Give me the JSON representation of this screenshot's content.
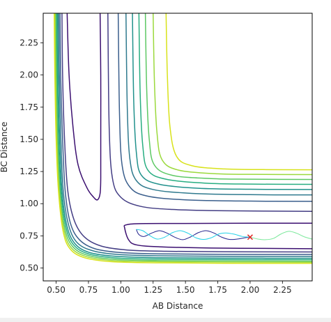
{
  "chart_data": {
    "type": "contour",
    "xlabel": "AB Distance",
    "ylabel": "BC Distance",
    "xlim": [
      0.4,
      2.48
    ],
    "ylim": [
      0.4,
      2.48
    ],
    "xticks": [
      "0.50",
      "0.75",
      "1.00",
      "1.25",
      "1.50",
      "1.75",
      "2.00",
      "2.25"
    ],
    "yticks": [
      "0.50",
      "0.75",
      "1.00",
      "1.25",
      "1.50",
      "1.75",
      "2.00",
      "2.25"
    ],
    "grid": false,
    "contour_colormap": [
      "#3b0f70",
      "#433d84",
      "#3a5e8c",
      "#2f7a8e",
      "#21918c",
      "#27ad81",
      "#5cc863",
      "#9bd93c",
      "#d8e219",
      "#fde725"
    ],
    "contours": [
      {
        "level": 1,
        "color": "#3b0f70",
        "points": [
          [
            0.84,
            2.48
          ],
          [
            0.845,
            2.0
          ],
          [
            0.845,
            1.5
          ],
          [
            0.845,
            1.2
          ],
          [
            0.84,
            1.08
          ],
          [
            0.82,
            1.03
          ],
          [
            0.79,
            1.05
          ],
          [
            0.74,
            1.12
          ],
          [
            0.67,
            1.3
          ],
          [
            0.63,
            1.6
          ],
          [
            0.6,
            2.0
          ],
          [
            0.585,
            2.48
          ]
        ]
      },
      {
        "level": 1,
        "color": "#3b0f70",
        "points": [
          [
            2.48,
            0.848
          ],
          [
            2.0,
            0.848
          ],
          [
            1.5,
            0.846
          ],
          [
            1.15,
            0.845
          ],
          [
            1.04,
            0.835
          ],
          [
            1.03,
            0.81
          ],
          [
            1.06,
            0.72
          ],
          [
            1.12,
            0.68
          ],
          [
            1.3,
            0.665
          ],
          [
            1.7,
            0.655
          ],
          [
            2.2,
            0.652
          ],
          [
            2.48,
            0.65
          ]
        ]
      },
      {
        "level": 2,
        "color": "#433d84",
        "points": [
          [
            0.9,
            2.48
          ],
          [
            0.91,
            1.6
          ],
          [
            0.935,
            1.2
          ],
          [
            1.0,
            1.05
          ],
          [
            1.15,
            0.98
          ],
          [
            1.4,
            0.955
          ],
          [
            1.8,
            0.945
          ],
          [
            2.48,
            0.94
          ]
        ]
      },
      {
        "level": 2,
        "color": "#433d84",
        "points": [
          [
            2.48,
            0.625
          ],
          [
            1.8,
            0.626
          ],
          [
            1.35,
            0.63
          ],
          [
            1.05,
            0.64
          ],
          [
            0.85,
            0.67
          ],
          [
            0.72,
            0.74
          ],
          [
            0.64,
            0.87
          ],
          [
            0.59,
            1.1
          ],
          [
            0.565,
            1.5
          ],
          [
            0.55,
            2.0
          ],
          [
            0.545,
            2.48
          ]
        ]
      },
      {
        "level": 3,
        "color": "#3a5e8c",
        "points": [
          [
            0.98,
            2.48
          ],
          [
            0.99,
            1.7
          ],
          [
            1.01,
            1.3
          ],
          [
            1.07,
            1.13
          ],
          [
            1.2,
            1.06
          ],
          [
            1.5,
            1.03
          ],
          [
            2.0,
            1.02
          ],
          [
            2.48,
            1.018
          ]
        ]
      },
      {
        "level": 3,
        "color": "#3a5e8c",
        "points": [
          [
            2.48,
            0.605
          ],
          [
            1.8,
            0.606
          ],
          [
            1.3,
            0.61
          ],
          [
            1.0,
            0.62
          ],
          [
            0.8,
            0.65
          ],
          [
            0.68,
            0.72
          ],
          [
            0.61,
            0.85
          ],
          [
            0.57,
            1.1
          ],
          [
            0.55,
            1.5
          ],
          [
            0.535,
            2.0
          ],
          [
            0.53,
            2.48
          ]
        ]
      },
      {
        "level": 4,
        "color": "#2f7a8e",
        "points": [
          [
            1.04,
            2.48
          ],
          [
            1.05,
            1.75
          ],
          [
            1.07,
            1.35
          ],
          [
            1.12,
            1.18
          ],
          [
            1.25,
            1.11
          ],
          [
            1.55,
            1.08
          ],
          [
            2.0,
            1.07
          ],
          [
            2.48,
            1.068
          ]
        ]
      },
      {
        "level": 4,
        "color": "#2f7a8e",
        "points": [
          [
            2.48,
            0.59
          ],
          [
            1.8,
            0.591
          ],
          [
            1.3,
            0.595
          ],
          [
            0.98,
            0.605
          ],
          [
            0.78,
            0.635
          ],
          [
            0.66,
            0.7
          ],
          [
            0.595,
            0.84
          ],
          [
            0.555,
            1.1
          ],
          [
            0.537,
            1.5
          ],
          [
            0.525,
            2.0
          ],
          [
            0.52,
            2.48
          ]
        ]
      },
      {
        "level": 5,
        "color": "#21918c",
        "points": [
          [
            1.09,
            2.48
          ],
          [
            1.1,
            1.8
          ],
          [
            1.12,
            1.4
          ],
          [
            1.16,
            1.22
          ],
          [
            1.3,
            1.15
          ],
          [
            1.6,
            1.12
          ],
          [
            2.0,
            1.112
          ],
          [
            2.48,
            1.11
          ]
        ]
      },
      {
        "level": 5,
        "color": "#21918c",
        "points": [
          [
            2.48,
            0.576
          ],
          [
            1.8,
            0.577
          ],
          [
            1.3,
            0.58
          ],
          [
            0.97,
            0.59
          ],
          [
            0.76,
            0.62
          ],
          [
            0.645,
            0.69
          ],
          [
            0.583,
            0.83
          ],
          [
            0.545,
            1.1
          ],
          [
            0.527,
            1.5
          ],
          [
            0.516,
            2.0
          ],
          [
            0.511,
            2.48
          ]
        ]
      },
      {
        "level": 6,
        "color": "#27ad81",
        "points": [
          [
            1.14,
            2.48
          ],
          [
            1.15,
            1.85
          ],
          [
            1.17,
            1.45
          ],
          [
            1.21,
            1.26
          ],
          [
            1.35,
            1.19
          ],
          [
            1.65,
            1.16
          ],
          [
            2.0,
            1.152
          ],
          [
            2.48,
            1.15
          ]
        ]
      },
      {
        "level": 6,
        "color": "#27ad81",
        "points": [
          [
            2.48,
            0.565
          ],
          [
            1.8,
            0.566
          ],
          [
            1.3,
            0.569
          ],
          [
            0.96,
            0.578
          ],
          [
            0.75,
            0.61
          ],
          [
            0.635,
            0.68
          ],
          [
            0.575,
            0.82
          ],
          [
            0.537,
            1.1
          ],
          [
            0.519,
            1.5
          ],
          [
            0.509,
            2.0
          ],
          [
            0.504,
            2.48
          ]
        ]
      },
      {
        "level": 7,
        "color": "#5cc863",
        "points": [
          [
            1.19,
            2.48
          ],
          [
            1.2,
            1.9
          ],
          [
            1.22,
            1.5
          ],
          [
            1.26,
            1.3
          ],
          [
            1.4,
            1.22
          ],
          [
            1.7,
            1.195
          ],
          [
            2.0,
            1.19
          ],
          [
            2.48,
            1.188
          ]
        ]
      },
      {
        "level": 7,
        "color": "#5cc863",
        "points": [
          [
            2.48,
            0.554
          ],
          [
            1.8,
            0.555
          ],
          [
            1.3,
            0.558
          ],
          [
            0.95,
            0.567
          ],
          [
            0.74,
            0.6
          ],
          [
            0.625,
            0.67
          ],
          [
            0.567,
            0.81
          ],
          [
            0.53,
            1.1
          ],
          [
            0.512,
            1.5
          ],
          [
            0.502,
            2.0
          ],
          [
            0.497,
            2.48
          ]
        ]
      },
      {
        "level": 8,
        "color": "#9bd93c",
        "points": [
          [
            1.25,
            2.48
          ],
          [
            1.26,
            1.95
          ],
          [
            1.28,
            1.55
          ],
          [
            1.32,
            1.34
          ],
          [
            1.45,
            1.26
          ],
          [
            1.75,
            1.232
          ],
          [
            2.0,
            1.228
          ],
          [
            2.48,
            1.226
          ]
        ]
      },
      {
        "level": 8,
        "color": "#9bd93c",
        "points": [
          [
            2.48,
            0.545
          ],
          [
            1.8,
            0.546
          ],
          [
            1.3,
            0.549
          ],
          [
            0.94,
            0.558
          ],
          [
            0.73,
            0.59
          ],
          [
            0.615,
            0.66
          ],
          [
            0.56,
            0.8
          ],
          [
            0.524,
            1.1
          ],
          [
            0.506,
            1.5
          ],
          [
            0.496,
            2.0
          ],
          [
            0.491,
            2.48
          ]
        ]
      },
      {
        "level": 9,
        "color": "#d8e219",
        "points": [
          [
            1.35,
            2.48
          ],
          [
            1.36,
            2.0
          ],
          [
            1.38,
            1.6
          ],
          [
            1.43,
            1.37
          ],
          [
            1.55,
            1.295
          ],
          [
            1.8,
            1.27
          ],
          [
            2.1,
            1.265
          ],
          [
            2.48,
            1.263
          ]
        ]
      },
      {
        "level": 9,
        "color": "#d8e219",
        "points": [
          [
            2.48,
            0.536
          ],
          [
            1.8,
            0.537
          ],
          [
            1.3,
            0.54
          ],
          [
            0.93,
            0.549
          ],
          [
            0.72,
            0.58
          ],
          [
            0.607,
            0.65
          ],
          [
            0.553,
            0.79
          ],
          [
            0.518,
            1.1
          ],
          [
            0.5,
            1.5
          ],
          [
            0.49,
            2.0
          ],
          [
            0.485,
            2.48
          ]
        ]
      }
    ],
    "series": [
      {
        "type": "line",
        "color": "#20208c",
        "points": [
          [
            1.12,
            0.8
          ],
          [
            1.14,
            0.76
          ],
          [
            1.18,
            0.745
          ],
          [
            1.24,
            0.772
          ],
          [
            1.3,
            0.79
          ],
          [
            1.36,
            0.77
          ],
          [
            1.42,
            0.738
          ],
          [
            1.48,
            0.72
          ],
          [
            1.54,
            0.742
          ],
          [
            1.6,
            0.775
          ],
          [
            1.66,
            0.79
          ],
          [
            1.72,
            0.772
          ],
          [
            1.78,
            0.74
          ],
          [
            1.84,
            0.722
          ],
          [
            1.9,
            0.725
          ],
          [
            1.96,
            0.735
          ],
          [
            2.0,
            0.74
          ]
        ]
      },
      {
        "type": "line",
        "color": "#22d2e8",
        "points": [
          [
            1.12,
            0.8
          ],
          [
            1.17,
            0.79
          ],
          [
            1.22,
            0.755
          ],
          [
            1.28,
            0.725
          ],
          [
            1.34,
            0.74
          ],
          [
            1.4,
            0.775
          ],
          [
            1.46,
            0.79
          ],
          [
            1.52,
            0.77
          ],
          [
            1.58,
            0.735
          ],
          [
            1.64,
            0.722
          ],
          [
            1.7,
            0.735
          ],
          [
            1.76,
            0.765
          ],
          [
            1.82,
            0.772
          ],
          [
            1.88,
            0.762
          ],
          [
            1.94,
            0.745
          ],
          [
            2.0,
            0.74
          ]
        ]
      },
      {
        "type": "line",
        "color": "#7ae89a",
        "points": [
          [
            2.0,
            0.74
          ],
          [
            2.06,
            0.725
          ],
          [
            2.12,
            0.72
          ],
          [
            2.18,
            0.73
          ],
          [
            2.24,
            0.765
          ],
          [
            2.3,
            0.785
          ],
          [
            2.36,
            0.77
          ],
          [
            2.42,
            0.742
          ],
          [
            2.48,
            0.725
          ]
        ]
      },
      {
        "type": "scatter",
        "marker": "x",
        "color": "#e02020",
        "points": [
          [
            2.0,
            0.74
          ]
        ]
      }
    ]
  }
}
